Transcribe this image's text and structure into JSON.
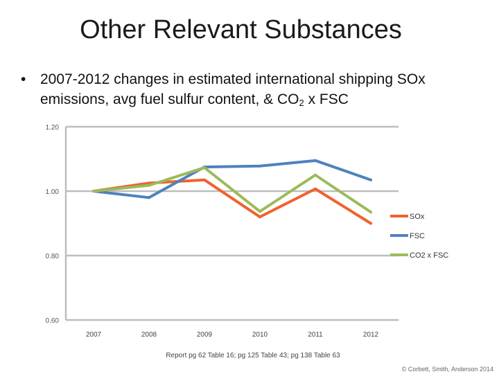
{
  "slide": {
    "title": "Other Relevant Substances",
    "bullet_marker": "•",
    "bullet_text_main": "2007-2012 changes in estimated international shipping SOx emissions, avg fuel sulfur content, & CO",
    "bullet_sub": "2",
    "bullet_text_tail": " x FSC",
    "source_note": "Report pg 62 Table 16; pg 125 Table 43; pg 138 Table 63",
    "credit": "© Corbett, Smith, Anderson 2014"
  },
  "chart_data": {
    "type": "line",
    "categories": [
      "2007",
      "2008",
      "2009",
      "2010",
      "2011",
      "2012"
    ],
    "ylim": [
      0.6,
      1.2
    ],
    "yticks": [
      "0.60",
      "0.80",
      "1.00",
      "1.20"
    ],
    "ytick_values": [
      0.6,
      0.8,
      1.0,
      1.2
    ],
    "grid": true,
    "legend_position": "right",
    "series": [
      {
        "name": "SOx",
        "color": "#f0622d",
        "values": [
          1.0,
          1.025,
          1.035,
          0.92,
          1.007,
          0.9
        ]
      },
      {
        "name": "FSC",
        "color": "#4f81bd",
        "values": [
          1.0,
          0.98,
          1.075,
          1.078,
          1.095,
          1.035
        ]
      },
      {
        "name": "CO2 x FSC",
        "color": "#9bbb59",
        "values": [
          1.0,
          1.018,
          1.073,
          0.937,
          1.05,
          0.935
        ]
      }
    ]
  }
}
